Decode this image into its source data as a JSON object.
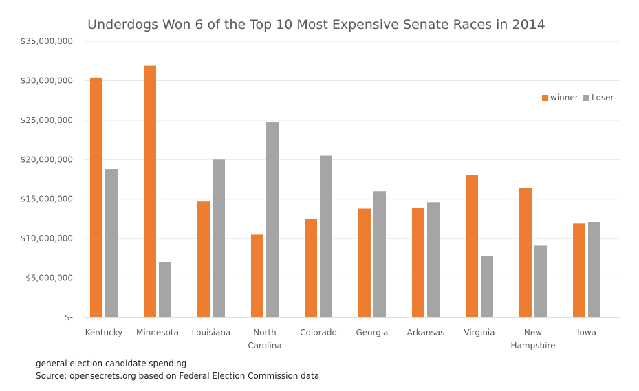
{
  "chart_data": {
    "type": "bar",
    "title": "Underdogs Won 6 of the Top 10 Most Expensive Senate Races in 2014",
    "xlabel": "",
    "ylabel": "",
    "categories": [
      "Kentucky",
      "Minnesota",
      "Louisiana",
      "North Carolina",
      "Colorado",
      "Georgia",
      "Arkansas",
      "Virginia",
      "New Hampshire",
      "Iowa"
    ],
    "category_lines": [
      [
        "Kentucky"
      ],
      [
        "Minnesota"
      ],
      [
        "Louisiana"
      ],
      [
        "North",
        "Carolina"
      ],
      [
        "Colorado"
      ],
      [
        "Georgia"
      ],
      [
        "Arkansas"
      ],
      [
        "Virginia"
      ],
      [
        "New",
        "Hampshire"
      ],
      [
        "Iowa"
      ]
    ],
    "series": [
      {
        "name": "winner",
        "color": "#ED7D31",
        "values": [
          30400000,
          31900000,
          14700000,
          10500000,
          12500000,
          13800000,
          13900000,
          18100000,
          16400000,
          11900000
        ]
      },
      {
        "name": "Loser",
        "color": "#A5A5A5",
        "values": [
          18800000,
          7000000,
          20000000,
          24800000,
          20500000,
          16000000,
          14600000,
          7800000,
          9100000,
          12100000
        ]
      }
    ],
    "ylim": [
      0,
      35000000
    ],
    "yticks": [
      0,
      5000000,
      10000000,
      15000000,
      20000000,
      25000000,
      30000000,
      35000000
    ],
    "ytick_labels": [
      "$-",
      "$5,000,000",
      "$10,000,000",
      "$15,000,000",
      "$20,000,000",
      "$25,000,000",
      "$30,000,000",
      "$35,000,000"
    ],
    "grid": true,
    "legend": "right",
    "legend_visible_text": [
      "winner",
      "Loser"
    ]
  },
  "footnotes": {
    "note": "general election candidate spending",
    "source": "Source: opensecrets.org based on Federal Election Commission data"
  }
}
